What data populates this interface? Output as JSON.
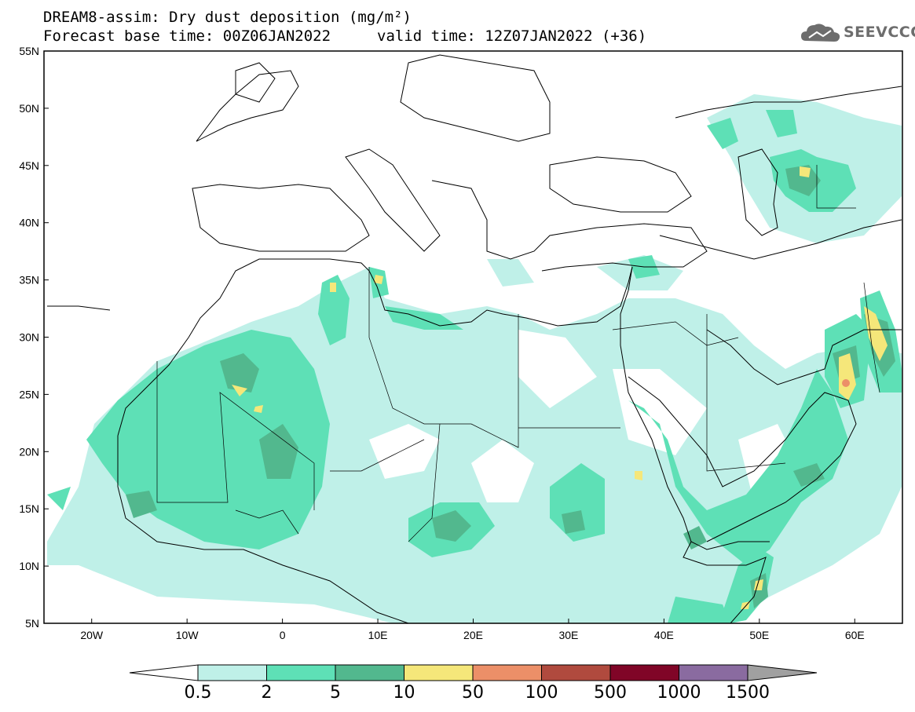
{
  "header": {
    "title": "DREAM8-assim: Dry dust deposition (mg/m²)",
    "base_time": "Forecast base time: 00Z06JAN2022",
    "valid_time": "valid time: 12Z07JAN2022 (+36)"
  },
  "logo": {
    "text": "SEEVCCC",
    "icon": "cloud-icon"
  },
  "map": {
    "lat_labels": [
      "55N",
      "50N",
      "45N",
      "40N",
      "35N",
      "30N",
      "25N",
      "20N",
      "15N",
      "10N",
      "5N"
    ],
    "lon_labels": [
      "20W",
      "10W",
      "0",
      "10E",
      "20E",
      "30E",
      "40E",
      "50E",
      "60E"
    ],
    "extent": {
      "lon": [
        -25,
        65
      ],
      "lat": [
        5,
        55
      ]
    }
  },
  "legend": {
    "labels": [
      "0.5",
      "2",
      "5",
      "10",
      "50",
      "100",
      "500",
      "1000",
      "1500"
    ],
    "colors": [
      "#ffffff",
      "#bff0e8",
      "#5ee0b6",
      "#52b88e",
      "#f5e77a",
      "#ec8f68",
      "#b04a3e",
      "#800527",
      "#8a6ba0",
      "#a0a0a0"
    ]
  }
}
